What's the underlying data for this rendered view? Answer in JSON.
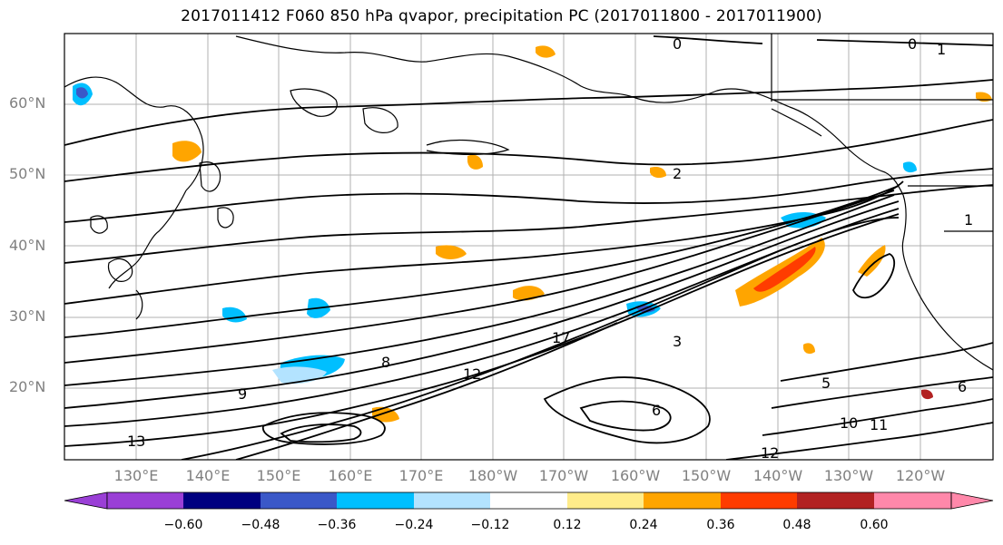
{
  "title": "2017011412 F060 850 hPa qvapor, precipitation PC (2017011800 - 2017011900)",
  "latitude_labels": [
    "60°N",
    "50°N",
    "40°N",
    "30°N",
    "20°N"
  ],
  "longitude_labels": [
    "130°E",
    "140°E",
    "150°E",
    "160°E",
    "170°E",
    "180°W",
    "170°W",
    "160°W",
    "150°W",
    "140°W",
    "130°W",
    "120°W"
  ],
  "contour_labels": [
    "0",
    "0",
    "1",
    "2",
    "3",
    "5",
    "6",
    "6",
    "8",
    "9",
    "10",
    "11",
    "12",
    "12",
    "13",
    "17",
    "1"
  ],
  "colorbar": {
    "tick_labels": [
      "−0.60",
      "−0.48",
      "−0.36",
      "−0.24",
      "−0.12",
      "0.12",
      "0.24",
      "0.36",
      "0.48",
      "0.60"
    ],
    "colors": [
      "#9a3fd6",
      "#000080",
      "#3a58c8",
      "#00bfff",
      "#b3e3ff",
      "#ffffff",
      "#ffec8a",
      "#ffa500",
      "#ff3c00",
      "#b22222",
      "#ff88aa"
    ]
  },
  "colors": {
    "contour": "#000000",
    "coast": "#000000",
    "grid": "#b0b0b0",
    "axis_text": "#808080"
  }
}
